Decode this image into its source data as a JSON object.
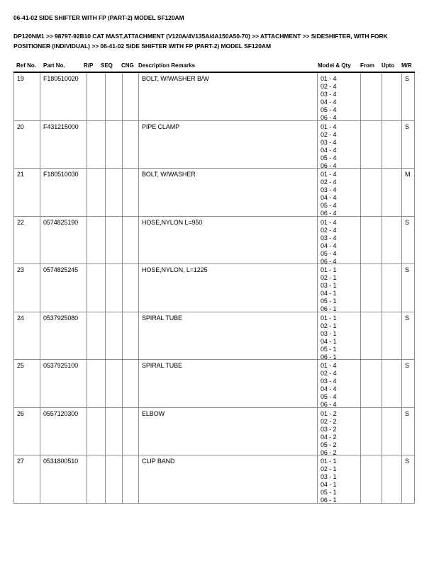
{
  "page": {
    "title": "06-41-02 SIDE SHIFTER WITH FP (PART-2) MODEL SF120AM",
    "breadcrumb": "DP120NM1 >> 98797-92B10 CAT MAST,ATTACHMENT (V120A/4V135A/4A150A50-70) >> ATTACHMENT >> SIDESHIFTER, WITH FORK POSITIONER (INDIVIDUAL) >> 06-41-02 SIDE SHIFTER WITH FP (PART-2) MODEL SF120AM",
    "ink_color": "#000000",
    "background_color": "#ffffff",
    "grid_line_color": "#8c8c8c"
  },
  "table": {
    "columns": [
      "Ref No.",
      "Part No.",
      "R/P",
      "SEQ",
      "CNG",
      "Description Remarks",
      "Model & Qty",
      "From",
      "Upto",
      "M/R"
    ],
    "rows": [
      {
        "ref_no": "19",
        "part_no": "F180510020",
        "rp": "",
        "seq": "",
        "cng": "",
        "description": "BOLT, W/WASHER B/W",
        "model_qty": [
          "01 - 4",
          "02 - 4",
          "03 - 4",
          "04 - 4",
          "05 - 4",
          "06 - 4"
        ],
        "from": "",
        "upto": "",
        "mr": "S"
      },
      {
        "ref_no": "20",
        "part_no": "F431215000",
        "rp": "",
        "seq": "",
        "cng": "",
        "description": "PIPE CLAMP",
        "model_qty": [
          "01 - 4",
          "02 - 4",
          "03 - 4",
          "04 - 4",
          "05 - 4",
          "06 - 4"
        ],
        "from": "",
        "upto": "",
        "mr": "S"
      },
      {
        "ref_no": "21",
        "part_no": "F180510030",
        "rp": "",
        "seq": "",
        "cng": "",
        "description": "BOLT, W/WASHER",
        "model_qty": [
          "01 - 4",
          "02 - 4",
          "03 - 4",
          "04 - 4",
          "05 - 4",
          "06 - 4"
        ],
        "from": "",
        "upto": "",
        "mr": "M"
      },
      {
        "ref_no": "22",
        "part_no": "0574825190",
        "rp": "",
        "seq": "",
        "cng": "",
        "description": "HOSE,NYLON L=950",
        "model_qty": [
          "01 - 4",
          "02 - 4",
          "03 - 4",
          "04 - 4",
          "05 - 4",
          "06 - 4"
        ],
        "from": "",
        "upto": "",
        "mr": "S"
      },
      {
        "ref_no": "23",
        "part_no": "0574825245",
        "rp": "",
        "seq": "",
        "cng": "",
        "description": "HOSE,NYLON, L=1225",
        "model_qty": [
          "01 - 1",
          "02 - 1",
          "03 - 1",
          "04 - 1",
          "05 - 1",
          "06 - 1"
        ],
        "from": "",
        "upto": "",
        "mr": "S"
      },
      {
        "ref_no": "24",
        "part_no": "0537925080",
        "rp": "",
        "seq": "",
        "cng": "",
        "description": "SPIRAL TUBE",
        "model_qty": [
          "01 - 1",
          "02 - 1",
          "03 - 1",
          "04 - 1",
          "05 - 1",
          "06 - 1"
        ],
        "from": "",
        "upto": "",
        "mr": "S"
      },
      {
        "ref_no": "25",
        "part_no": "0537925100",
        "rp": "",
        "seq": "",
        "cng": "",
        "description": "SPIRAL TUBE",
        "model_qty": [
          "01 - 4",
          "02 - 4",
          "03 - 4",
          "04 - 4",
          "05 - 4",
          "06 - 4"
        ],
        "from": "",
        "upto": "",
        "mr": "S"
      },
      {
        "ref_no": "26",
        "part_no": "0557120300",
        "rp": "",
        "seq": "",
        "cng": "",
        "description": "ELBOW",
        "model_qty": [
          "01 - 2",
          "02 - 2",
          "03 - 2",
          "04 - 2",
          "05 - 2",
          "06 - 2"
        ],
        "from": "",
        "upto": "",
        "mr": "S"
      },
      {
        "ref_no": "27",
        "part_no": "0531800510",
        "rp": "",
        "seq": "",
        "cng": "",
        "description": "CLIP BAND",
        "model_qty": [
          "01 - 1",
          "02 - 1",
          "03 - 1",
          "04 - 1",
          "05 - 1",
          "06 - 1"
        ],
        "from": "",
        "upto": "",
        "mr": "S"
      }
    ]
  }
}
